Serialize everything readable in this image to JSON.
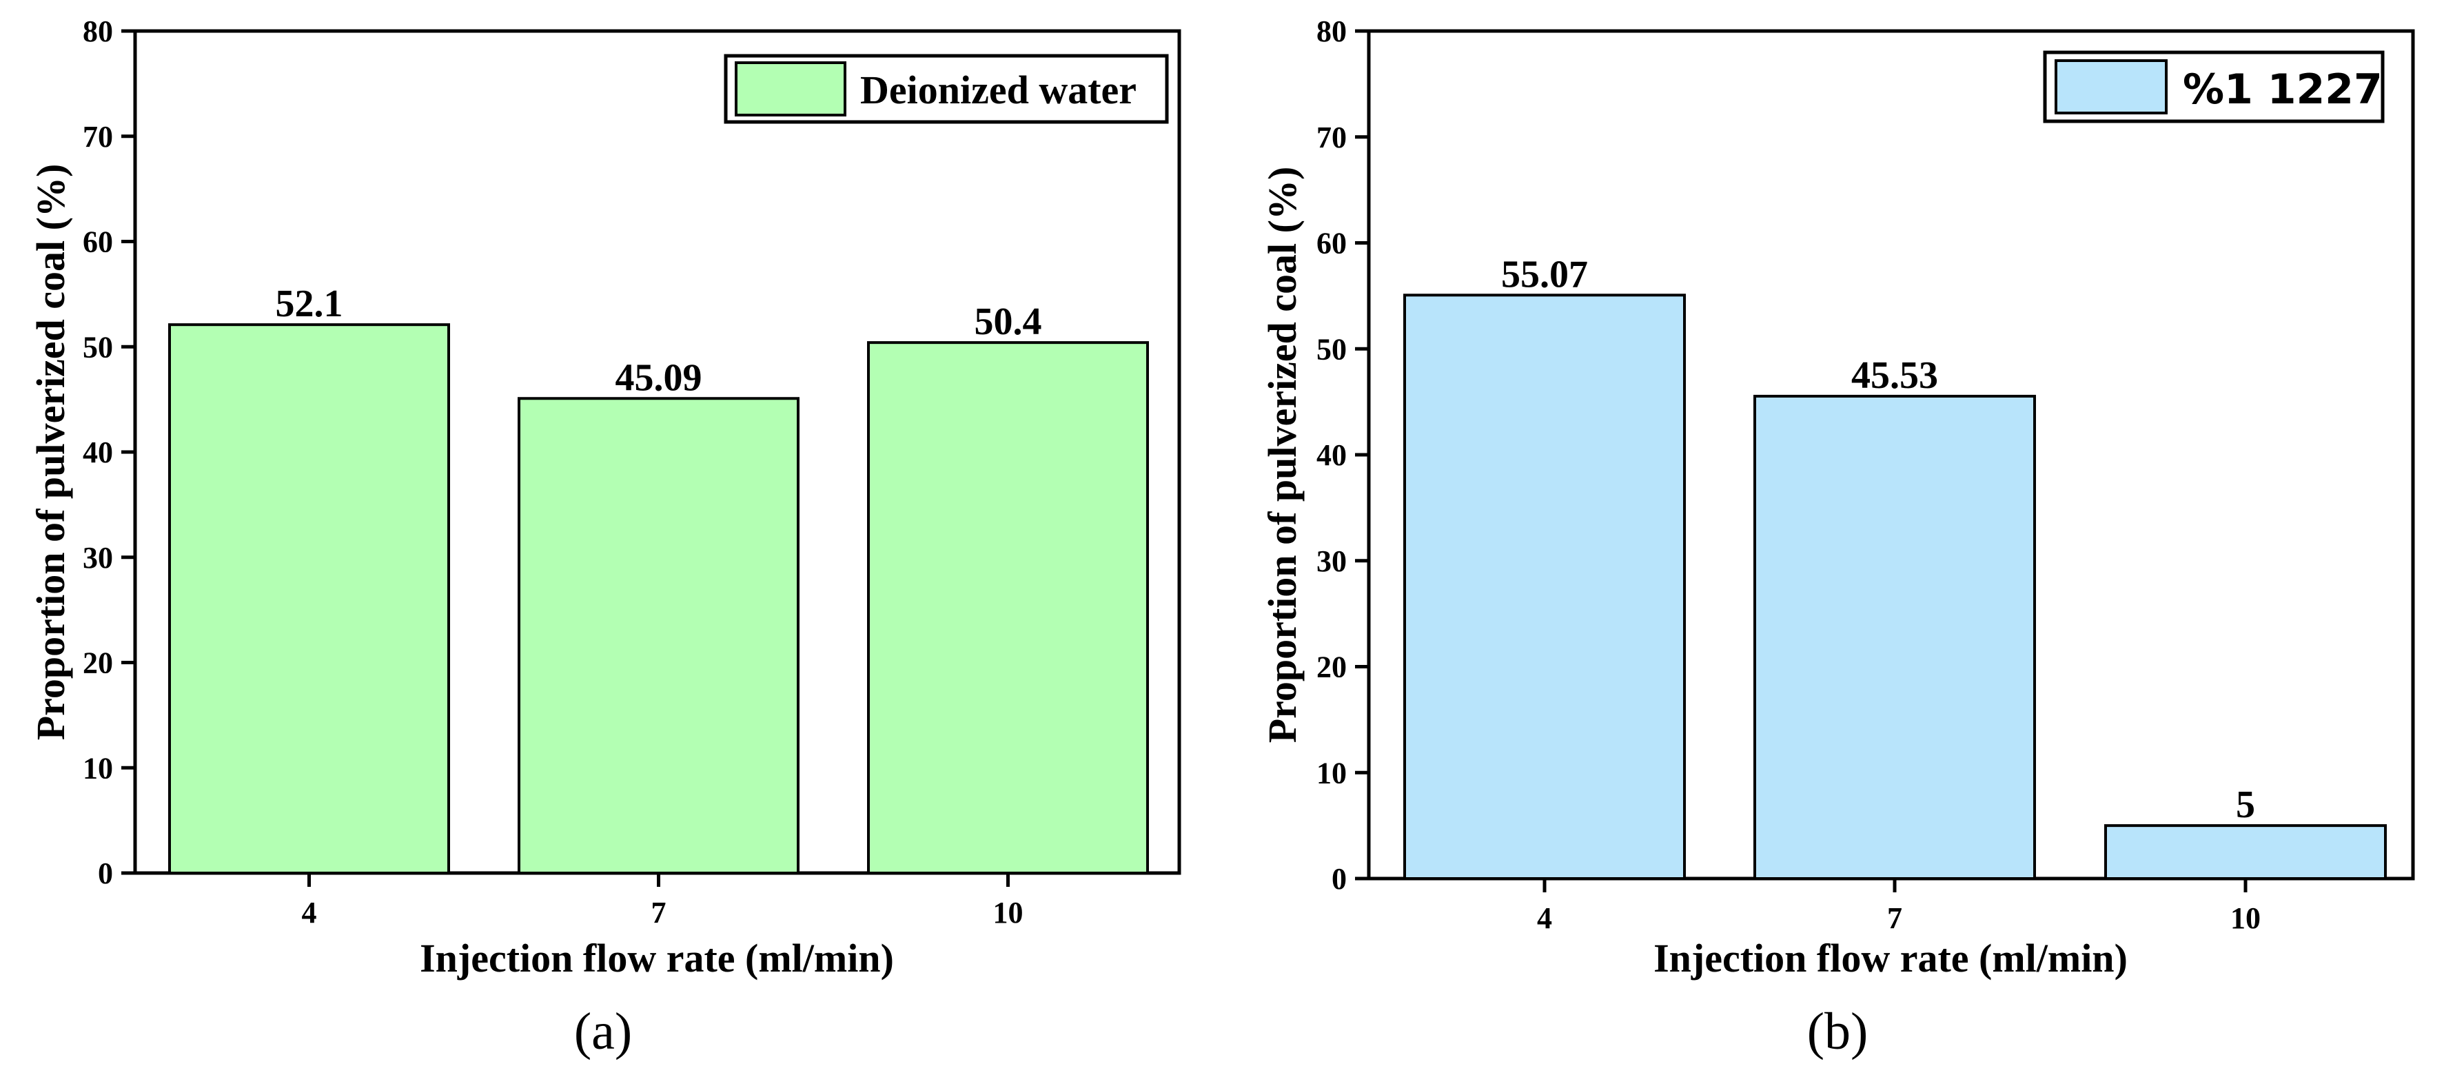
{
  "chart_data": [
    {
      "panel": "(a)",
      "type": "bar",
      "categories": [
        "4",
        "7",
        "10"
      ],
      "values": [
        52.1,
        45.09,
        50.4
      ],
      "value_labels": [
        "52.1",
        "45.09",
        "50.4"
      ],
      "series_name": "Deionized water",
      "bar_color": "#b3ffb3",
      "xlabel": "Injection flow rate (ml/min)",
      "ylabel": "Proportion of pulverized coal (%)",
      "ylim": [
        0,
        80
      ],
      "yticks": [
        0,
        10,
        20,
        30,
        40,
        50,
        60,
        70,
        80
      ],
      "grid": false,
      "legend_position": "top-right"
    },
    {
      "panel": "(b)",
      "type": "bar",
      "categories": [
        "4",
        "7",
        "10"
      ],
      "values": [
        55.07,
        45.53,
        5
      ],
      "value_labels": [
        "55.07",
        "45.53",
        "5"
      ],
      "series_name": "%1 1227",
      "bar_color": "#b8e4fb",
      "xlabel": "Injection flow rate (ml/min)",
      "ylabel": "Proportion of pulverized coal (%)",
      "ylim": [
        0,
        80
      ],
      "yticks": [
        0,
        10,
        20,
        30,
        40,
        50,
        60,
        70,
        80
      ],
      "grid": false,
      "legend_position": "top-right"
    }
  ]
}
